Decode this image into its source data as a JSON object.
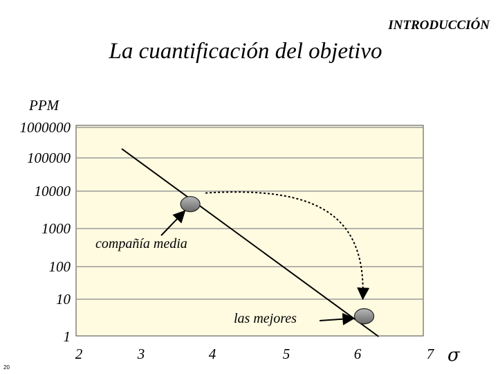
{
  "header": {
    "section_label": "INTRODUCCIÓN",
    "title": "La cuantificación del objetivo",
    "slide_number": "20"
  },
  "chart_data": {
    "type": "line",
    "title": "La cuantificación del objetivo",
    "ylabel": "PPM",
    "xlabel": "σ",
    "y_scale": "log",
    "x_ticks": [
      "2",
      "3",
      "4",
      "5",
      "6",
      "7"
    ],
    "y_ticks": [
      "1",
      "10",
      "100",
      "1000",
      "10000",
      "100000",
      "1000000"
    ],
    "xlim": [
      2,
      7
    ],
    "ylim": [
      1,
      1000000
    ],
    "grid": "horizontal",
    "plot_background": "#fffbe0",
    "series": [
      {
        "x": [
          2.7,
          6.3
        ],
        "y": [
          200000,
          1
        ]
      }
    ],
    "points": [
      {
        "label": "compañía media",
        "x": 3.7,
        "y": 4500
      },
      {
        "label": "las mejores",
        "x": 6.1,
        "y": 3.5
      }
    ],
    "marker_color": "#8c8c8c"
  }
}
